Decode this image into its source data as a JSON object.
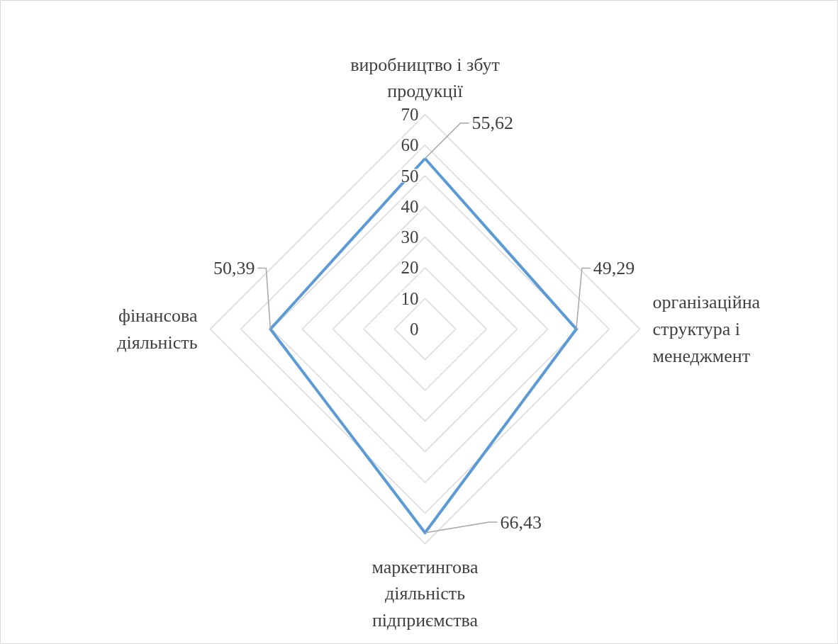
{
  "chart_data": {
    "type": "radar",
    "categories": [
      "виробництво і збут\nпродукції",
      "організаційна\nструктура і\nменеджмент",
      "маркетингова\nдіяльність\nпідприємства",
      "фінансова\nдіяльність"
    ],
    "series": [
      {
        "color": "#5b9bd5",
        "values": [
          55.62,
          49.29,
          66.43,
          50.39
        ],
        "value_labels": [
          "55,62",
          "49,29",
          "66,43",
          "50,39"
        ]
      }
    ],
    "ylim": [
      0,
      70
    ],
    "yticks": [
      0,
      10,
      20,
      30,
      40,
      50,
      60,
      70
    ],
    "grid": true
  }
}
